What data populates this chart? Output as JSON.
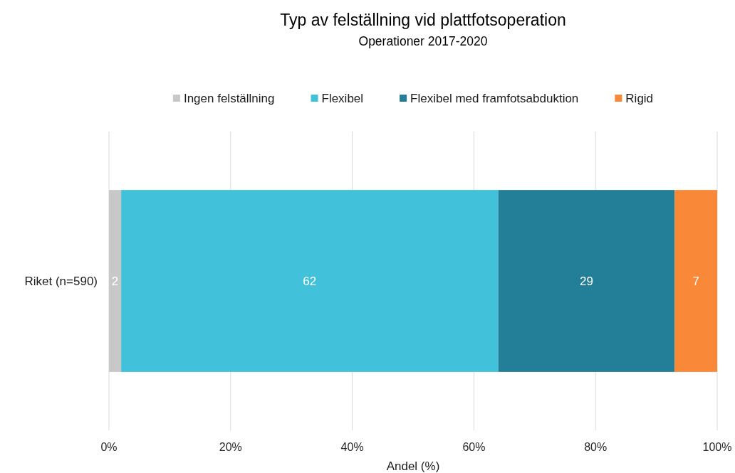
{
  "chart_data": {
    "type": "bar",
    "orientation": "horizontal",
    "stacked": true,
    "title": "Typ av felställning vid plattfotsoperation",
    "subtitle": "Operationer 2017-2020",
    "xlabel": "Andel (%)",
    "categories": [
      "Riket (n=590)"
    ],
    "series": [
      {
        "name": "Ingen felställning",
        "color": "#c8c8c8",
        "values": [
          2
        ]
      },
      {
        "name": "Flexibel",
        "color": "#42c1da",
        "values": [
          62
        ]
      },
      {
        "name": "Flexibel med framfotsabduktion",
        "color": "#237f98",
        "values": [
          29
        ]
      },
      {
        "name": "Rigid",
        "color": "#f98939",
        "values": [
          7
        ]
      }
    ],
    "xlim": [
      0,
      100
    ],
    "xticks": [
      {
        "value": 0,
        "label": "0%"
      },
      {
        "value": 20,
        "label": "20%"
      },
      {
        "value": 40,
        "label": "40%"
      },
      {
        "value": 60,
        "label": "60%"
      },
      {
        "value": 80,
        "label": "80%"
      },
      {
        "value": 100,
        "label": "100%"
      }
    ],
    "grid": "x",
    "legend": "top",
    "data_labels": true
  }
}
